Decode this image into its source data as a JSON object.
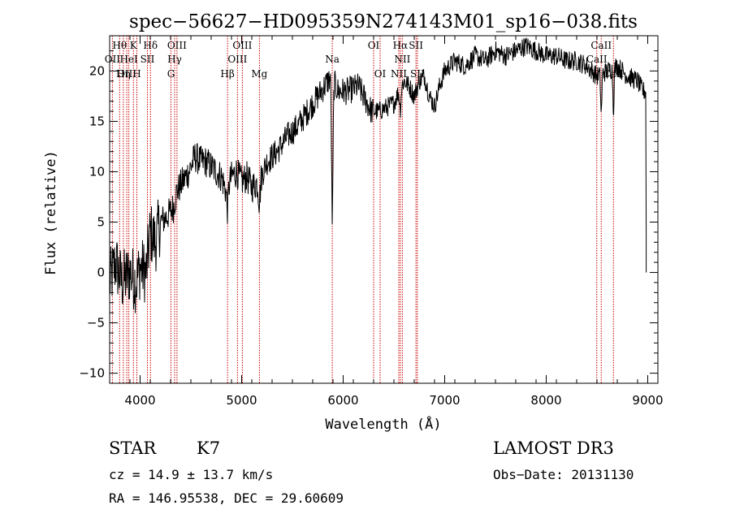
{
  "chart_data": {
    "type": "line",
    "title": "spec−56627−HD095359N274143M01_sp16−038.fits",
    "xlabel": "Wavelength (Å)",
    "ylabel": "Flux (relative)",
    "xlim": [
      3700,
      9100
    ],
    "ylim": [
      -11,
      23.5
    ],
    "xticks": [
      4000,
      5000,
      6000,
      7000,
      8000,
      9000
    ],
    "yticks": [
      -10,
      -5,
      0,
      5,
      10,
      15,
      20
    ],
    "anchors": [
      [
        3700,
        -1
      ],
      [
        3760,
        1
      ],
      [
        3820,
        -1
      ],
      [
        3900,
        0
      ],
      [
        3960,
        -1
      ],
      [
        4000,
        0.5
      ],
      [
        4060,
        0
      ],
      [
        4100,
        4
      ],
      [
        4150,
        3
      ],
      [
        4200,
        5
      ],
      [
        4260,
        5.5
      ],
      [
        4330,
        6.5
      ],
      [
        4360,
        8
      ],
      [
        4420,
        9
      ],
      [
        4480,
        10
      ],
      [
        4540,
        11.5
      ],
      [
        4600,
        11
      ],
      [
        4650,
        11
      ],
      [
        4700,
        10.5
      ],
      [
        4750,
        10
      ],
      [
        4800,
        9.5
      ],
      [
        4850,
        8
      ],
      [
        4900,
        9.5
      ],
      [
        4950,
        10
      ],
      [
        5000,
        9
      ],
      [
        5050,
        9.5
      ],
      [
        5100,
        8.5
      ],
      [
        5170,
        9
      ],
      [
        5250,
        11
      ],
      [
        5350,
        12
      ],
      [
        5450,
        13.5
      ],
      [
        5550,
        14.5
      ],
      [
        5650,
        16
      ],
      [
        5750,
        17.5
      ],
      [
        5850,
        19
      ],
      [
        5880,
        19.5
      ],
      [
        5950,
        18
      ],
      [
        6050,
        18
      ],
      [
        6150,
        18.5
      ],
      [
        6200,
        17.5
      ],
      [
        6280,
        16
      ],
      [
        6350,
        16
      ],
      [
        6450,
        16.5
      ],
      [
        6500,
        16.8
      ],
      [
        6550,
        18
      ],
      [
        6600,
        19
      ],
      [
        6650,
        18.5
      ],
      [
        6700,
        17.5
      ],
      [
        6750,
        19
      ],
      [
        6800,
        19.5
      ],
      [
        6850,
        17.5
      ],
      [
        6900,
        16.5
      ],
      [
        6950,
        18.5
      ],
      [
        7000,
        20
      ],
      [
        7100,
        21
      ],
      [
        7200,
        20.5
      ],
      [
        7300,
        21.5
      ],
      [
        7400,
        21
      ],
      [
        7500,
        22
      ],
      [
        7600,
        21.5
      ],
      [
        7700,
        22
      ],
      [
        7800,
        22.5
      ],
      [
        7900,
        22
      ],
      [
        8000,
        21.5
      ],
      [
        8100,
        21.5
      ],
      [
        8200,
        21
      ],
      [
        8300,
        21
      ],
      [
        8400,
        20.5
      ],
      [
        8500,
        19.5
      ],
      [
        8600,
        20
      ],
      [
        8700,
        20.5
      ],
      [
        8800,
        19.5
      ],
      [
        8900,
        19
      ],
      [
        8950,
        18
      ],
      [
        8980,
        18
      ]
    ],
    "features": [
      {
        "center": 5893,
        "depth": 14,
        "width": 10
      },
      {
        "center": 8542,
        "depth": 4,
        "width": 8
      },
      {
        "center": 8662,
        "depth": 4,
        "width": 8
      },
      {
        "center": 6563,
        "depth": 2,
        "width": 10
      },
      {
        "center": 4861,
        "depth": 2,
        "width": 10
      },
      {
        "center": 5175,
        "depth": 2,
        "width": 12
      }
    ],
    "spectral_lines": [
      {
        "label": "Hθ",
        "wavelength": 3798,
        "row": 0
      },
      {
        "label": "K",
        "wavelength": 3934,
        "row": 0
      },
      {
        "label": "Hδ",
        "wavelength": 4102,
        "row": 0
      },
      {
        "label": "OIII",
        "wavelength": 4363,
        "row": 0
      },
      {
        "label": "OIII",
        "wavelength": 5007,
        "row": 0
      },
      {
        "label": "OI",
        "wavelength": 6300,
        "row": 0
      },
      {
        "label": "Hα",
        "wavelength": 6563,
        "row": 0
      },
      {
        "label": "SII",
        "wavelength": 6717,
        "row": 0
      },
      {
        "label": "CaII",
        "wavelength": 8542,
        "row": 0
      },
      {
        "label": "OII",
        "wavelength": 3727,
        "row": 1
      },
      {
        "label": "HeI",
        "wavelength": 3889,
        "row": 1
      },
      {
        "label": "SII",
        "wavelength": 4072,
        "row": 1
      },
      {
        "label": "Hγ",
        "wavelength": 4340,
        "row": 1
      },
      {
        "label": "OIII",
        "wavelength": 4959,
        "row": 1
      },
      {
        "label": "Na",
        "wavelength": 5893,
        "row": 1
      },
      {
        "label": "NII",
        "wavelength": 6583,
        "row": 1
      },
      {
        "label": "CaII",
        "wavelength": 8498,
        "row": 1
      },
      {
        "label": "OIII",
        "wavelength": 3869,
        "row": 2
      },
      {
        "label": "Hη",
        "wavelength": 3835,
        "row": 2
      },
      {
        "label": "H",
        "wavelength": 3968,
        "row": 2
      },
      {
        "label": "G",
        "wavelength": 4304,
        "row": 2
      },
      {
        "label": "Hβ",
        "wavelength": 4861,
        "row": 2
      },
      {
        "label": "Mg",
        "wavelength": 5175,
        "row": 2
      },
      {
        "label": "OI",
        "wavelength": 6364,
        "row": 2
      },
      {
        "label": "NII",
        "wavelength": 6548,
        "row": 2
      },
      {
        "label": "SII",
        "wavelength": 6731,
        "row": 2
      },
      {
        "label": "CaII",
        "wavelength": 8662,
        "row": 2
      }
    ]
  },
  "info": {
    "class": "STAR",
    "subclass": "K7",
    "survey": "LAMOST DR3",
    "cz": "cz = 14.9 ± 13.7 km/s",
    "obs_date": "Obs−Date: 20131130",
    "coords": "RA = 146.95538, DEC =  29.60609"
  }
}
